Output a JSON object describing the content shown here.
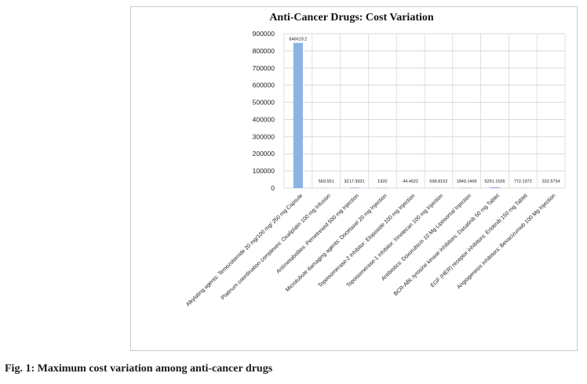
{
  "caption": "Fig. 1: Maximum cost variation among anti-cancer drugs",
  "colors": {
    "bar": "#8db3e2",
    "grid": "#d9d9d9",
    "text": "#222222"
  },
  "chart_data": {
    "type": "bar",
    "title": "Anti-Cancer Drugs: Cost Variation",
    "xlabel": "",
    "ylabel": "",
    "ylim": [
      0,
      900000
    ],
    "yticks": [
      0,
      100000,
      200000,
      300000,
      400000,
      500000,
      600000,
      700000,
      800000,
      900000
    ],
    "grid": true,
    "legend": "none",
    "categories": [
      "Alkylating agents: Temozolomide 20 mg/100 mg/ 250 mg Capsule",
      "Platinum coordination complexes: Oxaliplatin 100 mg Infusion",
      "Antimetabolites: Pemetrexed 500 mg Injection",
      "Microtubule damaging agents: Docetaxel 20 mg Injection",
      "Topoisomerase-2 inhibitor: Etoposide 100 mg Injection",
      "Topoisomerase-1 inhibitor: Irinotecan 100 mg Injection",
      "Antibiotics: Doxorubicin 10 Mg Liposomal Injection",
      "BCR-ABL tyrosine kinase inhibitors: Dasatinib 50 mg Tablet",
      "EGF (HER) receptor inhibitors: Erlotinib 150 mg Tablet",
      "Angiogenesis inhibitors: Bevacizumab 100 Mg Injection"
    ],
    "values": [
      846619.2,
      569.551,
      3217.3931,
      1920,
      44.4622,
      698.8152,
      1849.1465,
      5251.1526,
      772.1972,
      332.5734
    ],
    "data_labels": [
      "846619.2",
      "569.551",
      "3217.3931",
      "1920",
      "44.4622",
      "698.8152",
      "1849.1465",
      "5251.1526",
      "772.1972",
      "332.5734"
    ]
  }
}
